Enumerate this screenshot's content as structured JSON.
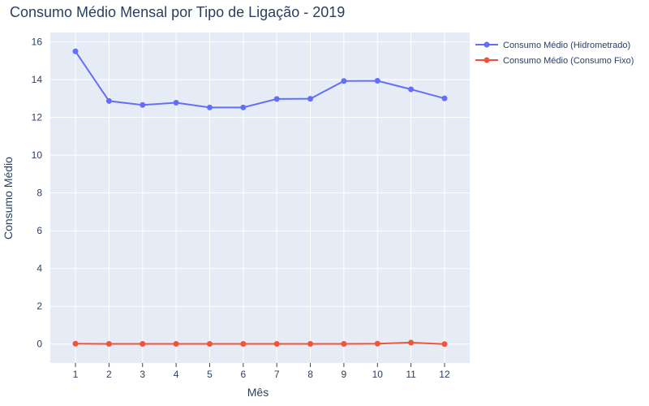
{
  "chart_data": {
    "type": "line",
    "title": "Consumo Médio Mensal por Tipo de Ligação - 2019",
    "xlabel": "Mês",
    "ylabel": "Consumo Médio",
    "x": [
      1,
      2,
      3,
      4,
      5,
      6,
      7,
      8,
      9,
      10,
      11,
      12
    ],
    "xlim": [
      0.25,
      12.75
    ],
    "ylim": [
      -1,
      16.5
    ],
    "yticks": [
      0,
      2,
      4,
      6,
      8,
      10,
      12,
      14,
      16
    ],
    "grid": true,
    "legend_position": "top-right",
    "series": [
      {
        "name": "Consumo Médio (Hidrometrado)",
        "color": "#636efa",
        "values": [
          15.5,
          12.87,
          12.66,
          12.78,
          12.53,
          12.53,
          12.98,
          12.99,
          13.93,
          13.94,
          13.49,
          13.01
        ]
      },
      {
        "name": "Consumo Médio (Consumo Fixo)",
        "color": "#ef553b",
        "values": [
          0.02,
          0.01,
          0.01,
          0.01,
          0.01,
          0.01,
          0.01,
          0.01,
          0.01,
          0.02,
          0.08,
          0.0
        ]
      }
    ]
  }
}
